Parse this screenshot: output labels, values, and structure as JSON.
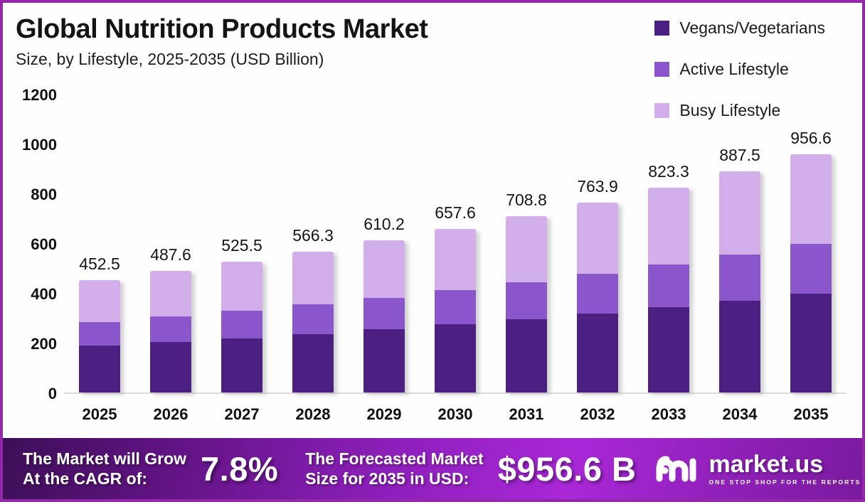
{
  "frame": {
    "border_color": "#9329a8",
    "background": "#fefefe"
  },
  "header": {
    "title": "Global Nutrition Products Market",
    "subtitle": "Size, by Lifestyle, 2025-2035 (USD Billion)"
  },
  "legend": {
    "position": "top-right",
    "items": [
      {
        "label": "Vegans/Vegetarians",
        "color": "#4a2183"
      },
      {
        "label": "Active Lifestyle",
        "color": "#8c55cd"
      },
      {
        "label": "Busy Lifestyle",
        "color": "#d2afea"
      }
    ]
  },
  "chart_data": {
    "type": "bar",
    "stacked": true,
    "title": "Global Nutrition Products Market Size, by Lifestyle, 2025-2035 (USD Billion)",
    "xlabel": "",
    "ylabel": "",
    "ylim": [
      0,
      1200
    ],
    "yticks": [
      0,
      200,
      400,
      600,
      800,
      1000,
      1200
    ],
    "grid": false,
    "legend_position": "top-right",
    "categories": [
      "2025",
      "2026",
      "2027",
      "2028",
      "2029",
      "2030",
      "2031",
      "2032",
      "2033",
      "2034",
      "2035"
    ],
    "totals": [
      452.5,
      487.6,
      525.5,
      566.3,
      610.2,
      657.6,
      708.8,
      763.9,
      823.3,
      887.5,
      956.6
    ],
    "bar_labels": [
      "452.5",
      "487.6",
      "525.5",
      "566.3",
      "610.2",
      "657.6",
      "708.8",
      "763.9",
      "823.3",
      "887.5",
      "956.6"
    ],
    "series": [
      {
        "name": "Vegans/Vegetarians",
        "color": "#4b2082",
        "values": [
          187.8,
          202.4,
          218.1,
          235.0,
          253.2,
          272.9,
          294.2,
          317.0,
          341.7,
          368.3,
          397.0
        ]
      },
      {
        "name": "Active Lifestyle",
        "color": "#8b55cc",
        "values": [
          95.0,
          102.4,
          110.4,
          118.9,
          128.1,
          138.1,
          148.8,
          160.4,
          172.9,
          186.4,
          200.9
        ]
      },
      {
        "name": "Busy Lifestyle",
        "color": "#d2aeea",
        "values": [
          169.7,
          182.8,
          197.0,
          212.4,
          228.9,
          246.6,
          265.8,
          286.5,
          308.7,
          332.8,
          358.7
        ]
      }
    ],
    "note": "series values estimated from segment pixel heights; totals are the printed data labels"
  },
  "banner": {
    "cagr_label_line1": "The Market will Grow",
    "cagr_label_line2": "At the CAGR of:",
    "cagr_value": "7.8%",
    "forecast_label_line1": "The Forecasted Market",
    "forecast_label_line2": "Size for 2035 in USD:",
    "forecast_value": "$956.6 B",
    "logo_text": "market.us",
    "logo_tagline": "ONE STOP SHOP FOR THE REPORTS"
  }
}
